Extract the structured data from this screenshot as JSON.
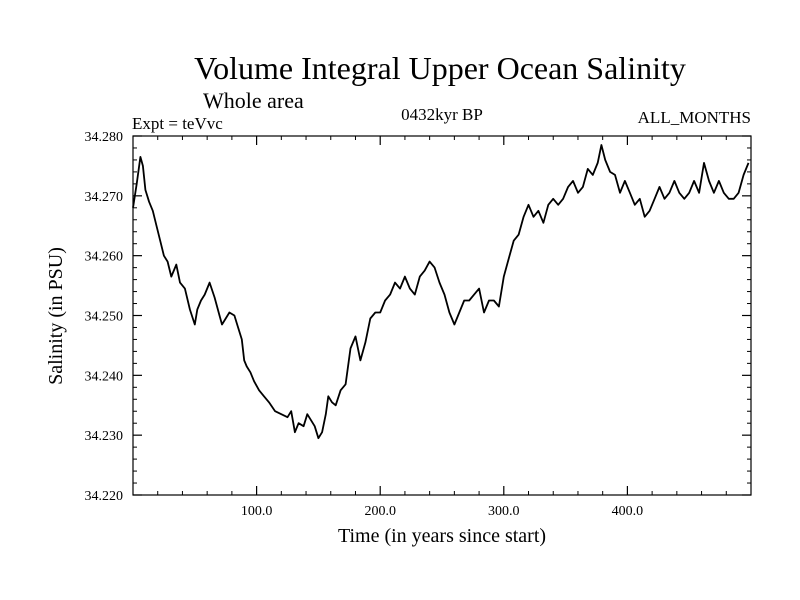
{
  "chart_data": {
    "type": "line",
    "title": "Volume Integral Upper Ocean Salinity",
    "subtitle": "Whole area",
    "experiment": "Expt = teVvc",
    "period": "0432kyr BP",
    "months": "ALL_MONTHS",
    "xlabel": "Time (in years since start)",
    "ylabel": "Salinity (in PSU)",
    "xlim": [
      0,
      500
    ],
    "ylim": [
      34.22,
      34.28
    ],
    "x_ticks": [
      {
        "value": 100,
        "label": "100.0"
      },
      {
        "value": 200,
        "label": "200.0"
      },
      {
        "value": 300,
        "label": "300.0"
      },
      {
        "value": 400,
        "label": "400.0"
      }
    ],
    "y_ticks": [
      {
        "value": 34.22,
        "label": "34.220"
      },
      {
        "value": 34.23,
        "label": "34.230"
      },
      {
        "value": 34.24,
        "label": "34.240"
      },
      {
        "value": 34.25,
        "label": "34.250"
      },
      {
        "value": 34.26,
        "label": "34.260"
      },
      {
        "value": 34.27,
        "label": "34.270"
      },
      {
        "value": 34.28,
        "label": "34.280"
      }
    ],
    "series": [
      {
        "name": "salinity",
        "color": "#000000",
        "x": [
          0,
          3,
          6,
          8,
          10,
          13,
          16,
          19,
          22,
          25,
          28,
          31,
          35,
          38,
          42,
          46,
          50,
          52,
          55,
          58,
          62,
          66,
          70,
          72,
          75,
          78,
          82,
          85,
          88,
          90,
          92,
          95,
          98,
          102,
          106,
          110,
          115,
          120,
          125,
          128,
          131,
          134,
          138,
          141,
          144,
          147,
          150,
          153,
          156,
          158,
          161,
          164,
          168,
          172,
          176,
          180,
          184,
          188,
          192,
          196,
          200,
          204,
          208,
          212,
          216,
          220,
          224,
          228,
          232,
          236,
          240,
          244,
          248,
          252,
          256,
          260,
          264,
          268,
          272,
          276,
          280,
          284,
          288,
          292,
          296,
          300,
          304,
          308,
          312,
          316,
          320,
          324,
          328,
          332,
          336,
          340,
          344,
          348,
          352,
          356,
          360,
          364,
          368,
          372,
          376,
          379,
          382,
          386,
          390,
          394,
          398,
          402,
          406,
          410,
          414,
          418,
          422,
          426,
          430,
          434,
          438,
          442,
          446,
          450,
          454,
          458,
          462,
          466,
          470,
          474,
          478,
          482,
          486,
          490,
          494,
          498
        ],
        "values": [
          34.268,
          34.272,
          34.2765,
          34.275,
          34.271,
          34.269,
          34.2675,
          34.265,
          34.2625,
          34.26,
          34.259,
          34.2565,
          34.2585,
          34.2555,
          34.2545,
          34.251,
          34.2485,
          34.251,
          34.2525,
          34.2535,
          34.2555,
          34.253,
          34.25,
          34.2485,
          34.2495,
          34.2505,
          34.25,
          34.248,
          34.246,
          34.2425,
          34.2415,
          34.2405,
          34.239,
          34.2375,
          34.2365,
          34.2355,
          34.234,
          34.2335,
          34.233,
          34.234,
          34.2305,
          34.232,
          34.2315,
          34.2335,
          34.2325,
          34.2315,
          34.2295,
          34.2305,
          34.2335,
          34.2365,
          34.2355,
          34.235,
          34.2375,
          34.2385,
          34.2445,
          34.2465,
          34.2425,
          34.2455,
          34.2495,
          34.2505,
          34.2505,
          34.2525,
          34.2535,
          34.2555,
          34.2545,
          34.2565,
          34.2545,
          34.2535,
          34.2565,
          34.2575,
          34.259,
          34.258,
          34.2555,
          34.2535,
          34.2505,
          34.2485,
          34.2505,
          34.2525,
          34.2525,
          34.2535,
          34.2545,
          34.2505,
          34.2525,
          34.2525,
          34.2515,
          34.2565,
          34.2595,
          34.2625,
          34.2635,
          34.2665,
          34.2685,
          34.2665,
          34.2675,
          34.2655,
          34.2685,
          34.2695,
          34.2685,
          34.2695,
          34.2715,
          34.2725,
          34.2705,
          34.2715,
          34.2745,
          34.2735,
          34.2755,
          34.2785,
          34.276,
          34.274,
          34.2735,
          34.2705,
          34.2725,
          34.2705,
          34.2685,
          34.2695,
          34.2665,
          34.2675,
          34.2695,
          34.2715,
          34.2695,
          34.2705,
          34.2725,
          34.2705,
          34.2695,
          34.2705,
          34.2725,
          34.2705,
          34.2755,
          34.2725,
          34.2705,
          34.2725,
          34.2705,
          34.2695,
          34.2695,
          34.2705,
          34.2735,
          34.2755
        ]
      }
    ]
  }
}
